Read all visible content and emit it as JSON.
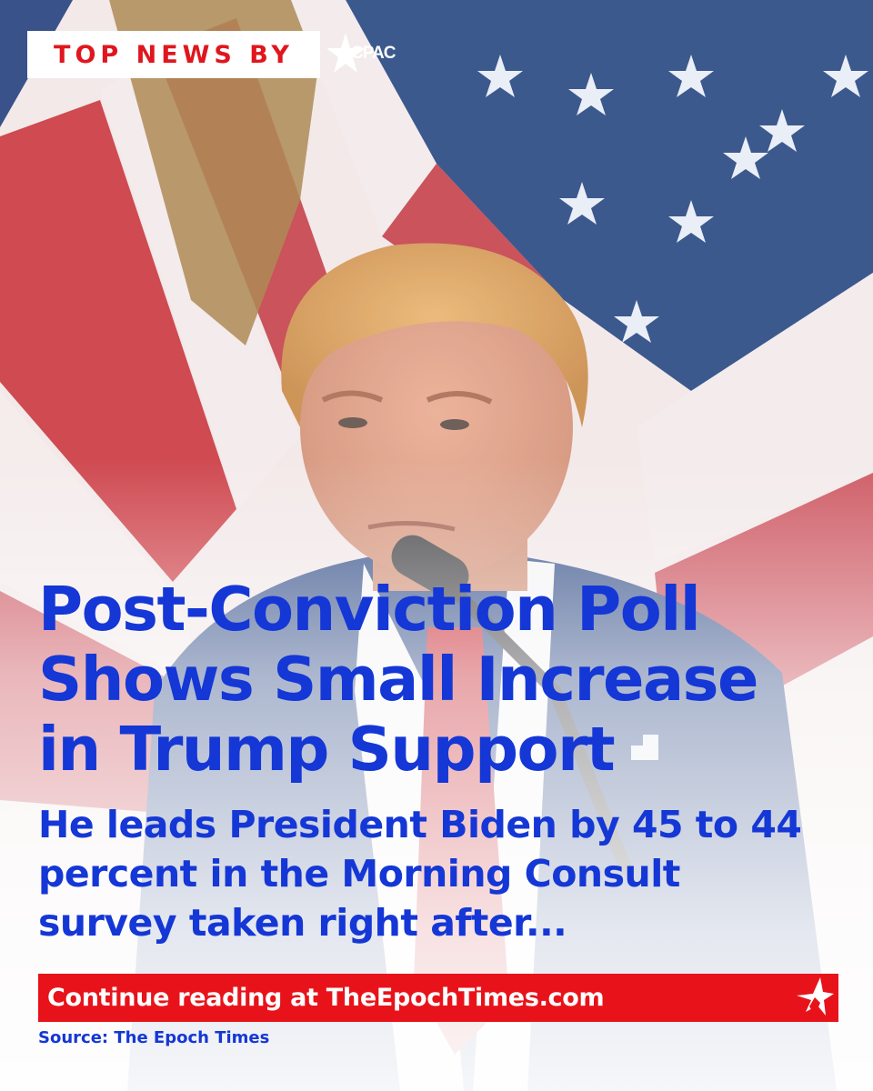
{
  "header": {
    "badge_label": "TOP NEWS BY",
    "brand_logo_text": "CPAC"
  },
  "article": {
    "headline_lines": [
      "Post-Conviction Poll",
      "Shows Small Increase",
      "in Trump Support"
    ],
    "subheadline_lines": [
      "He leads President Biden by 45 to 44",
      "percent in the Morning Consult",
      "survey taken right after..."
    ]
  },
  "cta": {
    "label": "Continue reading at TheEpochTimes.com",
    "icon": "star-icon"
  },
  "source": {
    "label": "Source: The Epoch Times"
  },
  "colors": {
    "headline_blue": "#1437d6",
    "badge_red": "#e0161e",
    "cta_red": "#e8131a",
    "flag_navy": "#1e3a78",
    "flag_red": "#c8323a"
  },
  "background_image": {
    "icon": "flag-and-speaker-photo"
  }
}
